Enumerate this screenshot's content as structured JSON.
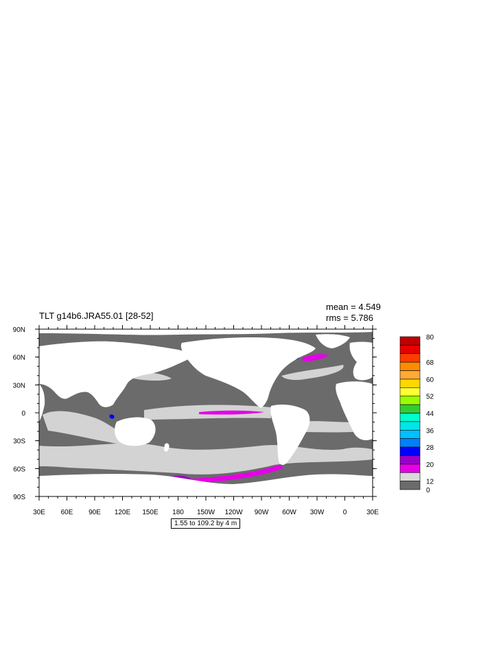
{
  "title": "TLT g14b6.JRA55.01 [28-52]",
  "stats": {
    "mean": "mean = 4.549",
    "rms": "rms = 5.786"
  },
  "contour_note": "1.55 to 109.2 by 4 m",
  "chart_data": {
    "type": "heatmap",
    "title": "TLT g14b6.JRA55.01 [28-52]",
    "projection": "cylindrical equidistant, centered 210E",
    "lon_ticks": [
      "30E",
      "60E",
      "90E",
      "120E",
      "150E",
      "180",
      "150W",
      "120W",
      "90W",
      "60W",
      "30W",
      "0",
      "30E"
    ],
    "lat_ticks": [
      "90N",
      "60N",
      "30N",
      "0",
      "30S",
      "60S",
      "90S"
    ],
    "colorbar": {
      "labels": [
        "80",
        "68",
        "60",
        "52",
        "44",
        "36",
        "28",
        "20",
        "12",
        "0"
      ],
      "colors": [
        "#c00000",
        "#e60000",
        "#ff3c00",
        "#ff8c00",
        "#ffaa33",
        "#ffd700",
        "#ffff33",
        "#99ff00",
        "#33cc33",
        "#00ffcc",
        "#00e6e6",
        "#00bfff",
        "#0080ff",
        "#0000ff",
        "#9900cc",
        "#e600e6",
        "#d9d9d9",
        "#6b6b6b"
      ]
    },
    "land_color": "#ffffff",
    "ocean_background_color": "#6b6b6b"
  }
}
